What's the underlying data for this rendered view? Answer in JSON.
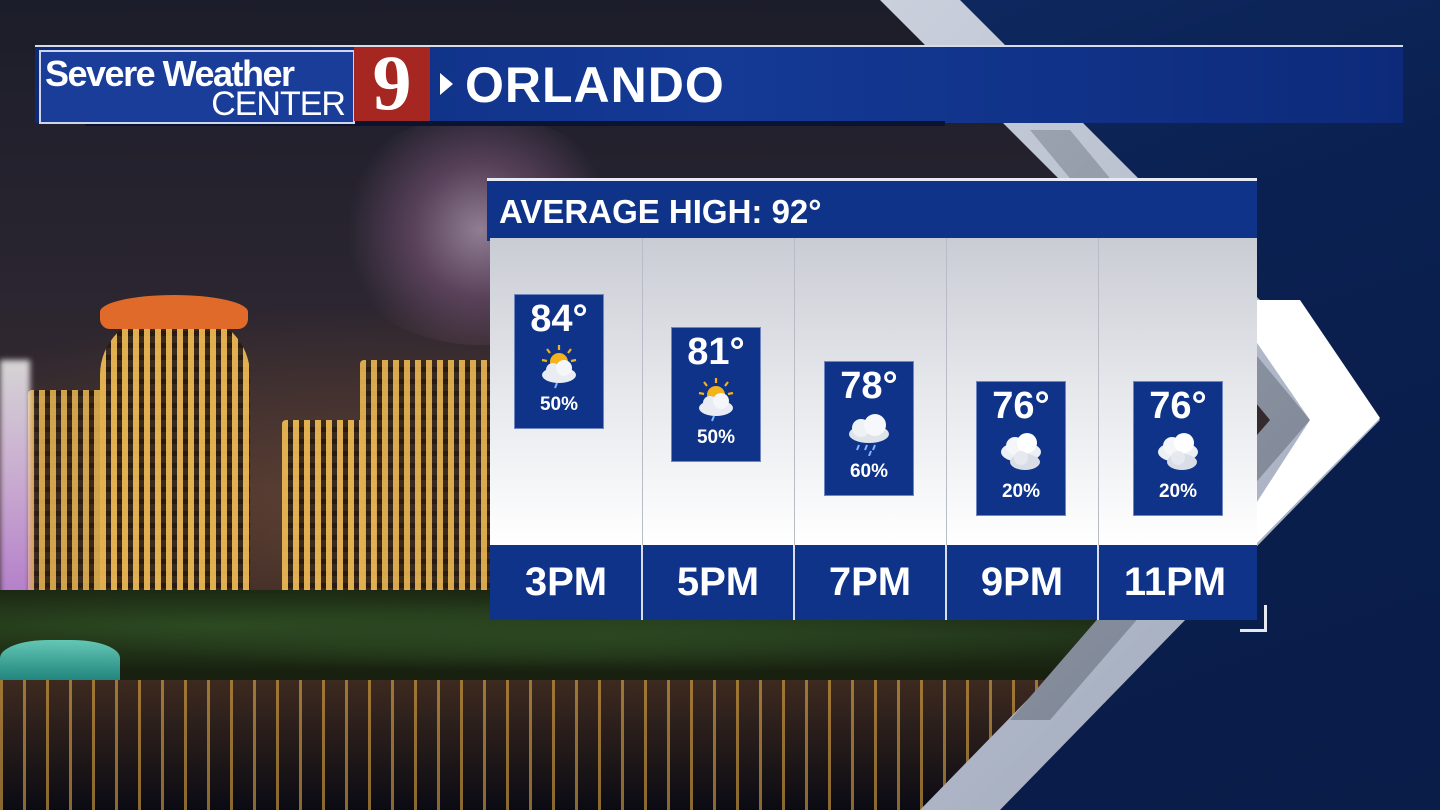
{
  "header": {
    "logo_line1": "Severe Weather",
    "logo_line2": "CENTER",
    "channel_number": "9",
    "city": "ORLANDO"
  },
  "forecast": {
    "title": "AVERAGE HIGH: 92°",
    "hours": [
      {
        "time": "3PM",
        "temp": "84°",
        "precip": "50%",
        "icon": "sun-cloud-rain-icon"
      },
      {
        "time": "5PM",
        "temp": "81°",
        "precip": "50%",
        "icon": "sun-cloud-rain-icon"
      },
      {
        "time": "7PM",
        "temp": "78°",
        "precip": "60%",
        "icon": "cloud-rain-icon"
      },
      {
        "time": "9PM",
        "temp": "76°",
        "precip": "20%",
        "icon": "cloudy-icon"
      },
      {
        "time": "11PM",
        "temp": "76°",
        "precip": "20%",
        "icon": "cloudy-icon"
      }
    ]
  },
  "colors": {
    "brand_blue": "#0f3389",
    "logo_red": "#a62722",
    "sun_yellow": "#f6b21a"
  }
}
